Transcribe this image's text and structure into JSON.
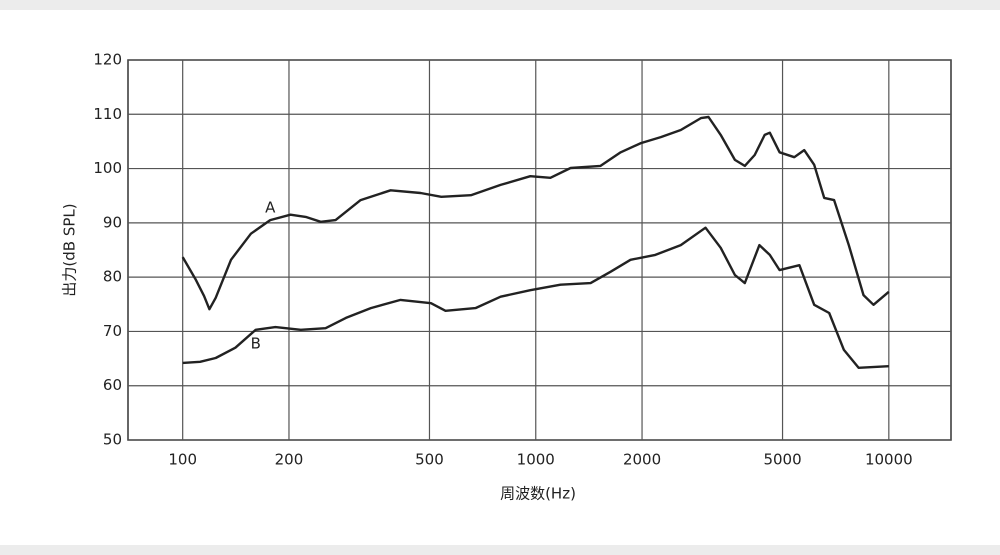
{
  "chart_data": {
    "type": "line",
    "x_label": "周波数(Hz)",
    "y_label": "出力(dB SPL)",
    "xscale": "log",
    "xlim": [
      70,
      15000
    ],
    "ylim": [
      50,
      120
    ],
    "xticks": [
      100,
      200,
      500,
      1000,
      2000,
      5000,
      10000
    ],
    "yticks": [
      50,
      60,
      70,
      80,
      90,
      100,
      110,
      120
    ],
    "grid": true,
    "series": [
      {
        "name": "A",
        "color": "#222222",
        "x": [
          100,
          109,
          115,
          119,
          124,
          137,
          156,
          177,
          202,
          223,
          246,
          271,
          319,
          388,
          472,
          540,
          655,
          795,
          965,
          1100,
          1255,
          1525,
          1740,
          1985,
          2260,
          2575,
          2935,
          3085,
          3340,
          3665,
          3910,
          4170,
          4450,
          4600,
          4905,
          5400,
          5760,
          6145,
          6560,
          7000,
          7700,
          8480,
          9050,
          10000
        ],
        "values": [
          83.7,
          79.5,
          76.5,
          74.1,
          76.2,
          83.2,
          88,
          90.5,
          91.5,
          91.1,
          90.2,
          90.5,
          94.2,
          96,
          95.5,
          94.8,
          95.1,
          97,
          98.6,
          98.3,
          100.1,
          100.5,
          103,
          104.7,
          105.8,
          107.1,
          109.3,
          109.5,
          106.2,
          101.6,
          100.5,
          102.5,
          106.2,
          106.6,
          103,
          102.1,
          103.4,
          100.7,
          94.6,
          94.2,
          85.9,
          76.7,
          74.9,
          77.3
        ]
      },
      {
        "name": "B",
        "color": "#222222",
        "x": [
          100,
          112,
          124,
          141,
          161,
          183,
          216,
          254,
          290,
          341,
          414,
          505,
          555,
          675,
          795,
          965,
          1175,
          1430,
          1630,
          1855,
          2180,
          2575,
          3025,
          3340,
          3665,
          3910,
          4300,
          4600,
          4905,
          5580,
          6145,
          6780,
          7460,
          8210,
          10000
        ],
        "values": [
          64.2,
          64.4,
          65.1,
          67,
          70.3,
          70.8,
          70.3,
          70.6,
          72.5,
          74.3,
          75.8,
          75.2,
          73.8,
          74.3,
          76.4,
          77.6,
          78.6,
          78.9,
          81,
          83.2,
          84.1,
          85.9,
          89.1,
          85.4,
          80.4,
          78.9,
          85.9,
          84.1,
          81.3,
          82.2,
          74.9,
          73.4,
          66.6,
          63.3,
          63.6
        ]
      }
    ]
  }
}
